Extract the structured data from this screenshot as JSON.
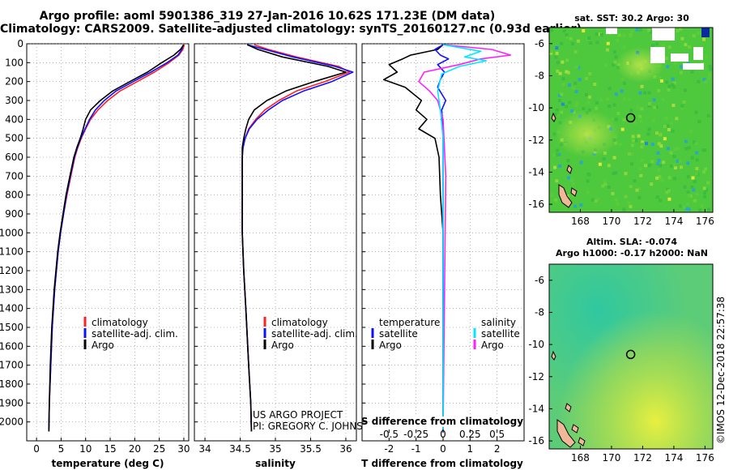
{
  "header": {
    "line1": "Argo profile: aoml 5901386_319 27-Jan-2016 10.62S 171.23E (DM data)",
    "line2": "Climatology: CARS2009. Satellite-adjusted climatology: synTS_20160127.nc (0.93d earlier)"
  },
  "colors": {
    "climatology": "#ff2020",
    "satellite": "#1010ff",
    "argo": "#000000",
    "cyan": "#00e8ff",
    "magenta": "#ff20ff"
  },
  "credits": {
    "line1": "US ARGO PROJECT",
    "line2": "PI: GREGORY C. JOHNSON",
    "stamp": "©IMOS 12-Dec-2018 22:57:38"
  },
  "chart_data": [
    {
      "id": "temperature",
      "type": "line",
      "xlabel": "temperature (deg C)",
      "ylabel": "pressure",
      "xlim": [
        -2,
        31
      ],
      "ylim": [
        2100,
        0
      ],
      "xticks": [
        0,
        5,
        10,
        15,
        20,
        25,
        30
      ],
      "xtick_labels": [
        "0",
        "5",
        "10",
        "15",
        "20",
        "25",
        "30"
      ],
      "yticks": [
        0,
        100,
        200,
        300,
        400,
        500,
        600,
        700,
        800,
        900,
        1000,
        1100,
        1200,
        1300,
        1400,
        1500,
        1600,
        1700,
        1800,
        1900,
        2000
      ],
      "ytick_labels": [
        "0",
        "100",
        "200",
        "300",
        "400",
        "500",
        "600",
        "700",
        "800",
        "900",
        "1000",
        "1100",
        "1200",
        "1300",
        "1400",
        "1500",
        "1600",
        "1700",
        "1800",
        "1900",
        "2000"
      ],
      "legend": [
        "climatology",
        "satellite-adj. clim.",
        "Argo"
      ],
      "series": [
        {
          "name": "climatology",
          "color": "#ff2020",
          "x": [
            30.1,
            29.8,
            29.0,
            27.0,
            24.0,
            20.5,
            17.0,
            14.5,
            12.5,
            11.0,
            10.0,
            9.1,
            8.4,
            7.8,
            7.0,
            6.2,
            5.5,
            4.9,
            4.4,
            3.7,
            3.2,
            2.9,
            2.6,
            2.5
          ],
          "y": [
            5,
            30,
            60,
            100,
            150,
            200,
            250,
            300,
            350,
            400,
            450,
            500,
            550,
            600,
            700,
            800,
            900,
            1000,
            1100,
            1300,
            1500,
            1700,
            1900,
            2050
          ]
        },
        {
          "name": "satellite-adj. clim.",
          "color": "#1010ff",
          "x": [
            29.9,
            29.6,
            28.8,
            26.6,
            23.3,
            19.7,
            16.2,
            13.8,
            12.0,
            10.8,
            9.9,
            9.0,
            8.3,
            7.7,
            6.9,
            6.1,
            5.5,
            4.9,
            4.4,
            3.7,
            3.2,
            2.9,
            2.6,
            2.5
          ],
          "y": [
            5,
            30,
            60,
            100,
            150,
            200,
            250,
            300,
            350,
            400,
            450,
            500,
            550,
            600,
            700,
            800,
            900,
            1000,
            1100,
            1300,
            1500,
            1700,
            1900,
            2050
          ]
        },
        {
          "name": "Argo",
          "color": "#000000",
          "x": [
            30.0,
            29.3,
            28.0,
            25.5,
            22.6,
            19.0,
            15.5,
            13.0,
            11.0,
            10.0,
            9.5,
            8.9,
            8.2,
            7.6,
            6.8,
            6.0,
            5.4,
            4.8,
            4.3,
            3.6,
            3.1,
            2.8,
            2.6,
            2.5
          ],
          "y": [
            5,
            30,
            60,
            100,
            150,
            200,
            250,
            300,
            350,
            400,
            450,
            500,
            550,
            600,
            700,
            800,
            900,
            1000,
            1100,
            1300,
            1500,
            1700,
            1900,
            2050
          ]
        }
      ]
    },
    {
      "id": "salinity",
      "type": "line",
      "xlabel": "salinity",
      "ylabel": "pressure",
      "xlim": [
        33.85,
        36.15
      ],
      "ylim": [
        2100,
        0
      ],
      "xticks": [
        34,
        34.5,
        35,
        35.5,
        36
      ],
      "xtick_labels": [
        "34",
        "34.5",
        "35",
        "35.5",
        "36"
      ],
      "legend": [
        "climatology",
        "satellite-adj. clim.",
        "Argo"
      ],
      "series": [
        {
          "name": "climatology",
          "color": "#ff2020",
          "x": [
            34.7,
            34.9,
            35.3,
            35.9,
            36.05,
            35.7,
            35.3,
            35.05,
            34.85,
            34.72,
            34.62,
            34.57,
            34.54,
            34.53,
            34.53,
            34.53,
            34.53,
            34.55,
            34.58,
            34.62,
            34.65,
            34.66
          ],
          "y": [
            5,
            30,
            70,
            120,
            150,
            200,
            250,
            300,
            350,
            400,
            450,
            500,
            550,
            600,
            700,
            800,
            1000,
            1200,
            1400,
            1700,
            1900,
            2050
          ]
        },
        {
          "name": "satellite-adj. clim.",
          "color": "#1010ff",
          "x": [
            34.6,
            34.85,
            35.25,
            35.85,
            36.1,
            35.8,
            35.4,
            35.1,
            34.9,
            34.74,
            34.63,
            34.57,
            34.54,
            34.53,
            34.53,
            34.53,
            34.53,
            34.55,
            34.58,
            34.62,
            34.65,
            34.66
          ],
          "y": [
            5,
            30,
            70,
            120,
            150,
            200,
            250,
            300,
            350,
            400,
            450,
            500,
            550,
            600,
            700,
            800,
            1000,
            1200,
            1400,
            1700,
            1900,
            2050
          ]
        },
        {
          "name": "Argo",
          "color": "#000000",
          "x": [
            34.6,
            34.75,
            35.1,
            35.75,
            36.0,
            35.55,
            35.15,
            34.88,
            34.7,
            34.62,
            34.58,
            34.55,
            34.53,
            34.53,
            34.53,
            34.53,
            34.53,
            34.55,
            34.58,
            34.62,
            34.65,
            34.66
          ],
          "y": [
            5,
            30,
            70,
            120,
            150,
            200,
            250,
            300,
            350,
            400,
            450,
            500,
            550,
            600,
            700,
            800,
            1000,
            1200,
            1400,
            1700,
            1900,
            2050
          ]
        }
      ]
    },
    {
      "id": "differences",
      "type": "line",
      "xlabel": "T difference from climatology",
      "top_xlabel": "S difference from climatology",
      "xlim": [
        -3,
        3
      ],
      "ylim": [
        2100,
        0
      ],
      "xticks": [
        -2,
        -1,
        0,
        1,
        2
      ],
      "xtick_labels": [
        "-2",
        "-1",
        "0",
        "1",
        "2"
      ],
      "s_ticks": [
        -0.5,
        -0.25,
        0,
        0.25,
        0.5
      ],
      "s_tick_labels": [
        "-0.5",
        "-0.25",
        "0",
        "0.25",
        "0.5"
      ],
      "legend_temperature": [
        "temperature",
        "satellite",
        "Argo"
      ],
      "legend_salinity": [
        "salinity",
        "satellite",
        "Argo"
      ],
      "series": [
        {
          "name": "T Argo",
          "color": "#000000",
          "x": [
            0,
            -0.2,
            -1.2,
            -1.5,
            -2.0,
            -1.7,
            -2.2,
            -1.4,
            -0.8,
            -1.0,
            -0.6,
            -0.9,
            -0.3,
            -0.15,
            -0.1,
            0,
            0
          ],
          "y": [
            5,
            30,
            60,
            80,
            110,
            150,
            190,
            230,
            300,
            350,
            400,
            450,
            500,
            600,
            800,
            1000,
            2050
          ]
        },
        {
          "name": "T satellite",
          "color": "#1010ff",
          "x": [
            0,
            -0.3,
            -0.1,
            0.2,
            -0.2,
            0.05,
            -0.1,
            -0.2,
            0.1,
            -0.05,
            0,
            0,
            0
          ],
          "y": [
            5,
            30,
            60,
            80,
            110,
            150,
            190,
            230,
            300,
            350,
            450,
            700,
            2050
          ]
        },
        {
          "name": "S Argo",
          "color": "#ff20ff",
          "x": [
            0,
            1.8,
            2.5,
            1.4,
            0.6,
            -0.7,
            -0.9,
            -0.5,
            -0.2,
            0,
            0.1,
            0
          ],
          "y": [
            5,
            30,
            60,
            80,
            110,
            150,
            200,
            250,
            300,
            400,
            700,
            2050
          ]
        },
        {
          "name": "S satellite",
          "color": "#00e8ff",
          "x": [
            0,
            1.4,
            0.8,
            1.6,
            0.6,
            -0.05,
            -0.2,
            -0.1,
            0,
            0,
            0
          ],
          "y": [
            5,
            40,
            70,
            90,
            120,
            160,
            250,
            350,
            500,
            1000,
            2050
          ]
        }
      ]
    },
    {
      "id": "sst-map",
      "type": "heatmap",
      "title": "sat. SST: 30.2 Argo: 30",
      "xlim": [
        166,
        176.5
      ],
      "ylim": [
        -16.5,
        -5
      ],
      "xticks": [
        168,
        170,
        172,
        174,
        176
      ],
      "yticks": [
        -6,
        -8,
        -10,
        -12,
        -14,
        -16
      ],
      "argo_position": {
        "lon": 171.23,
        "lat": -10.62
      }
    },
    {
      "id": "sla-map",
      "type": "heatmap",
      "title": "Altim. SLA: -0.074",
      "subtitle": "Argo h1000: -0.17 h2000: NaN",
      "xlim": [
        166,
        176.5
      ],
      "ylim": [
        -16.5,
        -5
      ],
      "xticks": [
        168,
        170,
        172,
        174,
        176
      ],
      "yticks": [
        -6,
        -8,
        -10,
        -12,
        -14,
        -16
      ],
      "argo_position": {
        "lon": 171.23,
        "lat": -10.62
      }
    }
  ]
}
